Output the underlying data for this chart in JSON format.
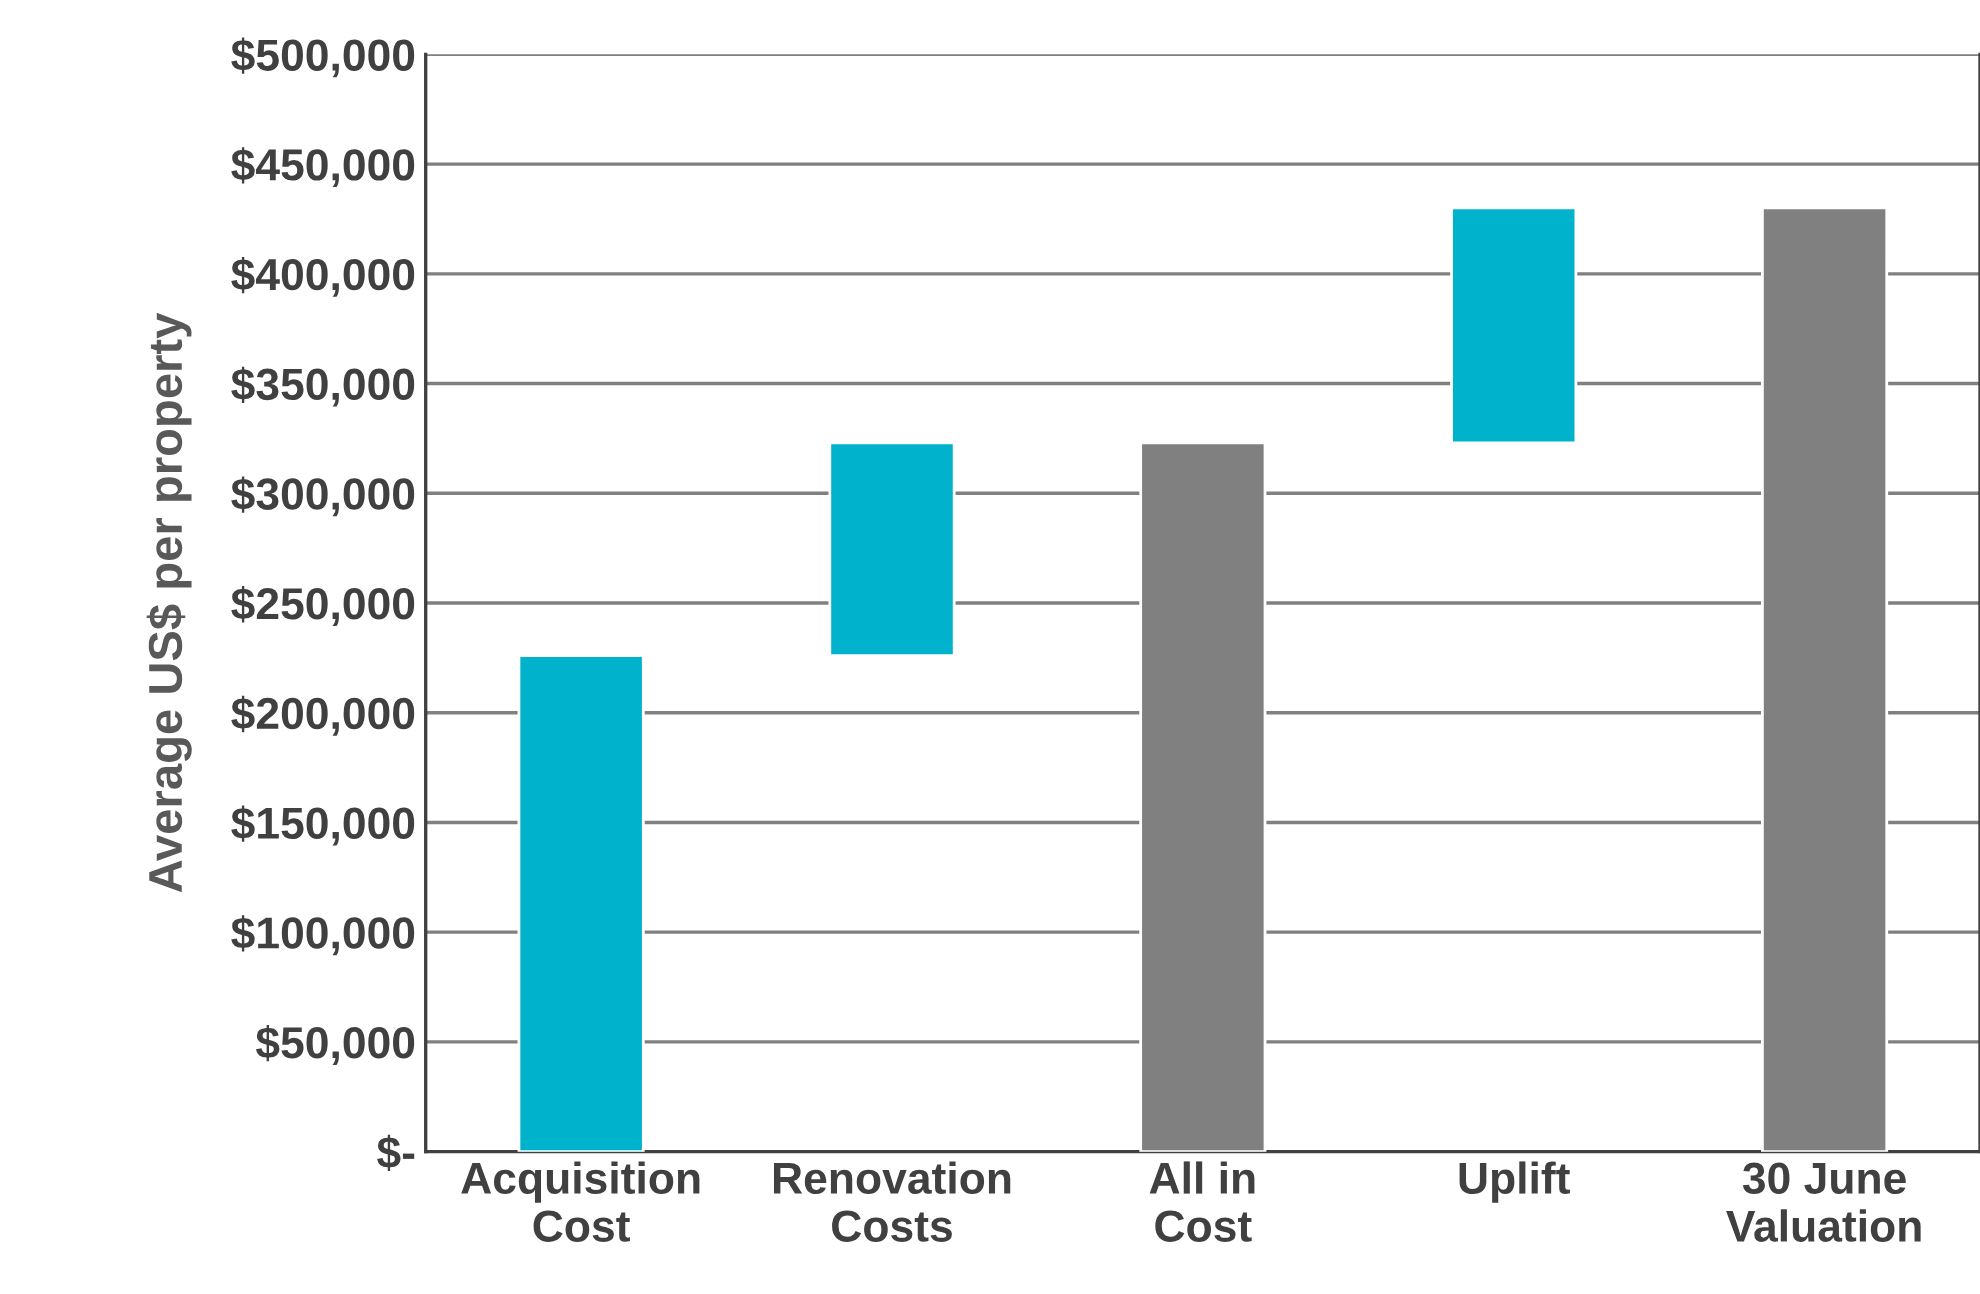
{
  "chart_data": {
    "type": "bar",
    "ylabel": "Average US$ per property",
    "categories": [
      "Acquisition\nCost",
      "Renovation\nCosts",
      "All in\nCost",
      "Uplift",
      "30 June\nValuation"
    ],
    "values": [
      226000,
      97000,
      323000,
      107000,
      430000
    ],
    "base": [
      0,
      226000,
      0,
      323000,
      0
    ],
    "colors": [
      "#00b2cc",
      "#00b2cc",
      "#808080",
      "#00b2cc",
      "#808080"
    ],
    "ylim": [
      0,
      500000
    ],
    "yticks": [
      {
        "value": 0,
        "label": "$-"
      },
      {
        "value": 50000,
        "label": "$50,000"
      },
      {
        "value": 100000,
        "label": "$100,000"
      },
      {
        "value": 150000,
        "label": "$150,000"
      },
      {
        "value": 200000,
        "label": "$200,000"
      },
      {
        "value": 250000,
        "label": "$250,000"
      },
      {
        "value": 300000,
        "label": "$300,000"
      },
      {
        "value": 350000,
        "label": "$350,000"
      },
      {
        "value": 400000,
        "label": "$400,000"
      },
      {
        "value": 450000,
        "label": "$450,000"
      },
      {
        "value": 500000,
        "label": "$500,000"
      }
    ],
    "grid": "y"
  }
}
